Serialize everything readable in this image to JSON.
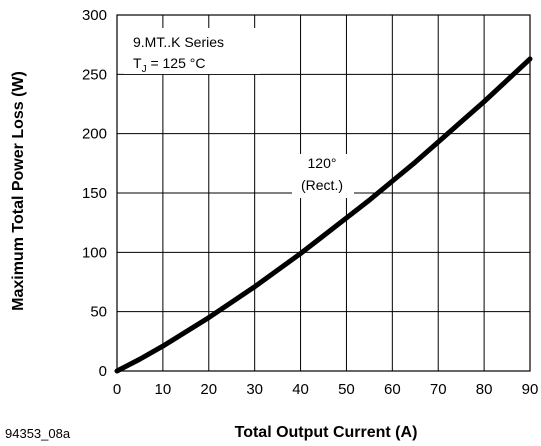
{
  "figure_id": "94353_08a",
  "chart_data": {
    "type": "line",
    "title": "",
    "xlabel": "Total Output Current (A)",
    "ylabel": "Maximum Total Power Loss (W)",
    "xlim": [
      0,
      90
    ],
    "ylim": [
      0,
      300
    ],
    "xticks": [
      0,
      10,
      20,
      30,
      40,
      50,
      60,
      70,
      80,
      90
    ],
    "yticks": [
      0,
      50,
      100,
      150,
      200,
      250,
      300
    ],
    "grid": true,
    "annotations": {
      "series_box_line1": "9.MT..K Series",
      "tj_prefix": "T",
      "tj_sub": "J",
      "tj_value": " = 125 °C",
      "curve_label_line1": "120°",
      "curve_label_line2": "(Rect.)"
    },
    "series": [
      {
        "name": "",
        "x": [
          0,
          5,
          10,
          15,
          20,
          25,
          30,
          35,
          40,
          45,
          50,
          55,
          60,
          65,
          70,
          75,
          80,
          85,
          90
        ],
        "y": [
          0,
          10,
          21,
          33,
          45,
          58,
          71,
          85,
          99,
          114,
          129,
          144,
          160,
          176,
          193,
          210,
          227,
          245,
          263
        ]
      }
    ]
  }
}
